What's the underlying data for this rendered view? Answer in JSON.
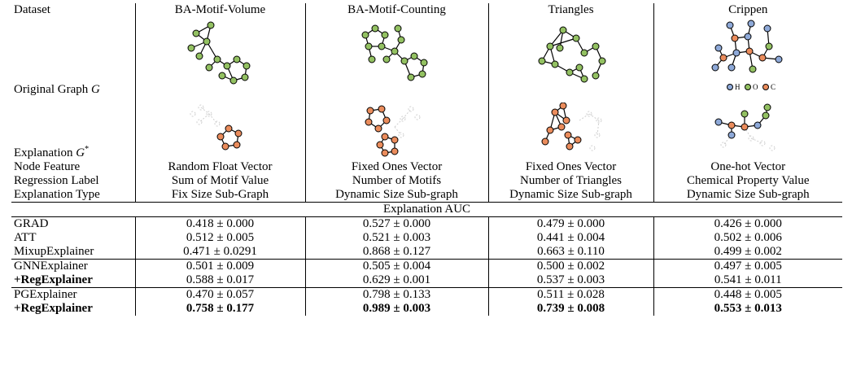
{
  "header": {
    "dataset_label": "Dataset",
    "datasets": [
      "BA-Motif-Volume",
      "BA-Motif-Counting",
      "Triangles",
      "Crippen"
    ]
  },
  "rows": {
    "original_graph_label": "Original Graph",
    "original_graph_symbol": "G",
    "explanation_label": "Explanation",
    "explanation_symbol": "G",
    "explanation_sup": "*",
    "node_feature_label": "Node Feature",
    "node_feature": [
      "Random Float Vector",
      "Fixed Ones Vector",
      "Fixed Ones Vector",
      "One-hot Vector"
    ],
    "regression_label_label": "Regression Label",
    "regression_label": [
      "Sum of Motif Value",
      "Number of Motifs",
      "Number of Triangles",
      "Chemical Property Value"
    ],
    "explanation_type_label": "Explanation Type",
    "explanation_type": [
      "Fix Size Sub-Graph",
      "Dynamic Size Sub-graph",
      "Dynamic Size Sub-graph",
      "Dynamic Size Sub-graph"
    ]
  },
  "legend": {
    "h": "H",
    "o": "O",
    "c": "C"
  },
  "colors": {
    "green": "#93c162",
    "orange": "#ea8c5c",
    "blue": "#8ea9d8",
    "faded": "#cfcfcf"
  },
  "section_title": "Explanation AUC",
  "methods": [
    {
      "name": "GRAD",
      "bold": false,
      "values": [
        "0.418 ± 0.000",
        "0.527 ± 0.000",
        "0.479 ± 0.000",
        "0.426 ± 0.000"
      ]
    },
    {
      "name": "ATT",
      "bold": false,
      "values": [
        "0.512 ± 0.005",
        "0.521 ± 0.003",
        "0.441 ± 0.004",
        "0.502 ± 0.006"
      ]
    },
    {
      "name": "MixupExplainer",
      "bold": false,
      "values": [
        "0.471 ± 0.0291",
        "0.868 ± 0.127",
        "0.663 ± 0.110",
        "0.499 ± 0.002"
      ]
    },
    {
      "name": "GNNExplainer",
      "bold": false,
      "values": [
        "0.501 ± 0.009",
        "0.505 ± 0.004",
        "0.500 ± 0.002",
        "0.497 ± 0.005"
      ]
    },
    {
      "name": "+RegExplainer",
      "bold": true,
      "values": [
        "0.588 ± 0.017",
        "0.629 ± 0.001",
        "0.537 ± 0.003",
        "0.541 ± 0.011"
      ]
    },
    {
      "name": "PGExplainer",
      "bold": false,
      "values": [
        "0.470 ± 0.057",
        "0.798 ± 0.133",
        "0.511 ± 0.028",
        "0.448 ± 0.005"
      ]
    },
    {
      "name": "+RegExplainer",
      "bold": true,
      "values": [
        "0.758 ± 0.177",
        "0.989 ± 0.003",
        "0.739 ± 0.008",
        "0.553 ± 0.013"
      ]
    }
  ]
}
